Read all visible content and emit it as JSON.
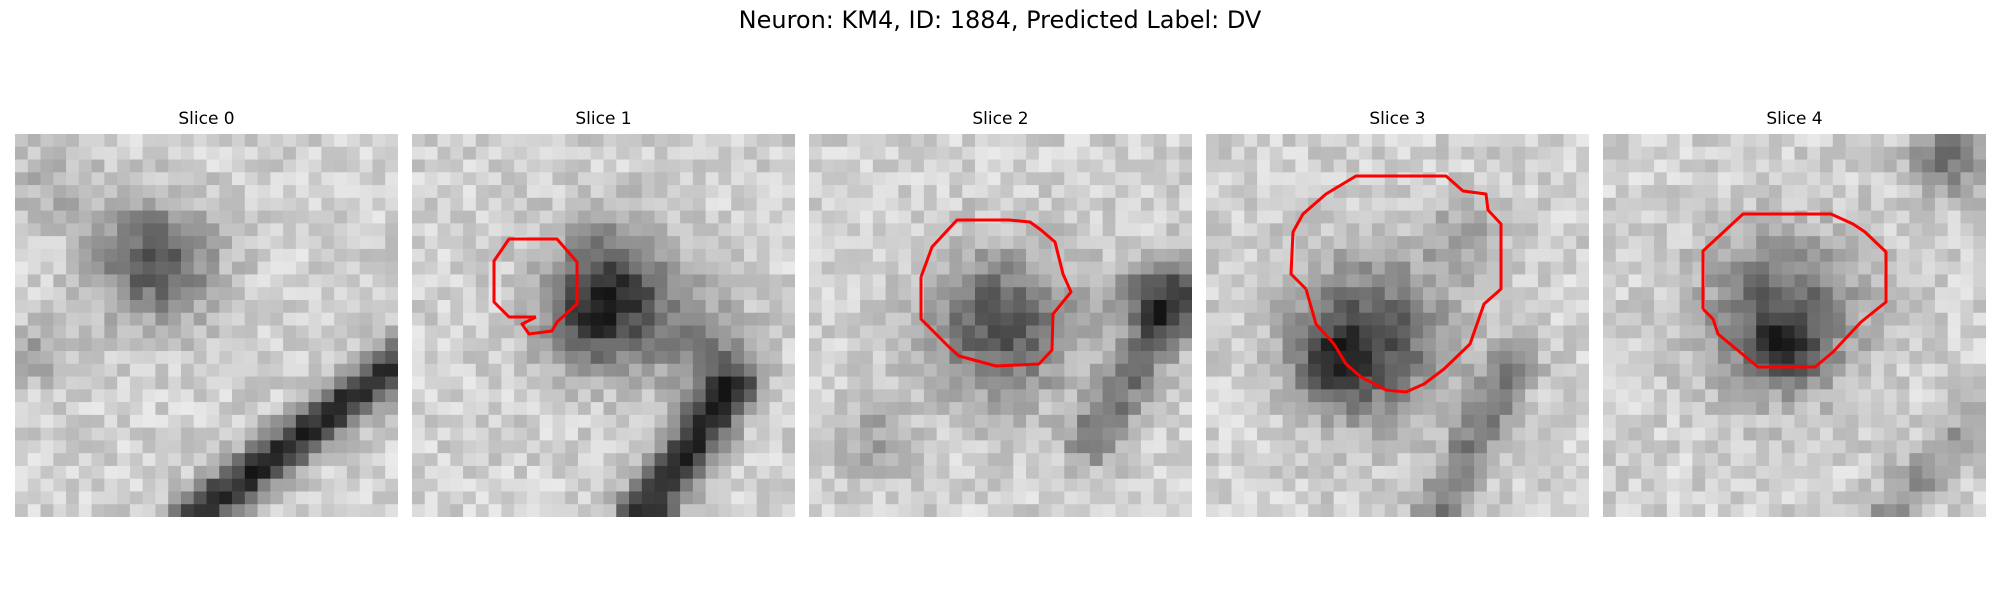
{
  "figure": {
    "title": "Neuron: KM4, ID: 1884, Predicted Label: DV"
  },
  "panels": [
    {
      "title": "Slice 0",
      "has_contour": false
    },
    {
      "title": "Slice 1",
      "has_contour": true
    },
    {
      "title": "Slice 2",
      "has_contour": true
    },
    {
      "title": "Slice 3",
      "has_contour": true
    },
    {
      "title": "Slice 4",
      "has_contour": true
    }
  ],
  "colors": {
    "contour": "#ff0000",
    "background": "#ffffff"
  },
  "image": {
    "colormap": "grayscale",
    "grid_size": 30
  }
}
